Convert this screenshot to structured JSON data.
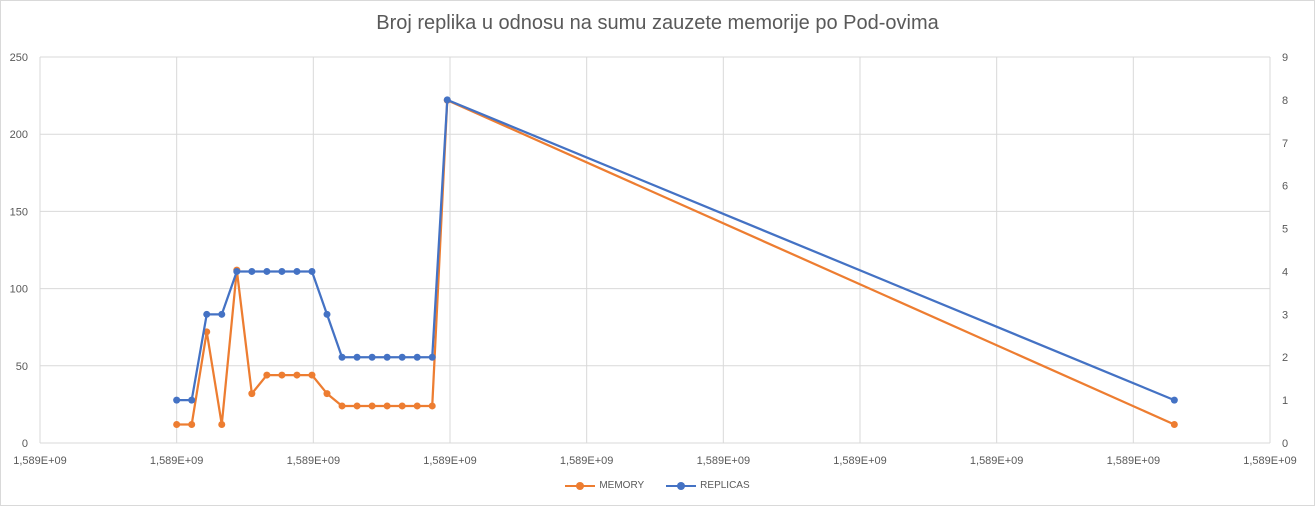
{
  "chart_data": {
    "type": "line",
    "title": "Broj replika u odnosu na sumu zauzete memorije po Pod-ovima",
    "xlabel": "",
    "ylabel": "",
    "x_tick_labels": [
      "1,589E+09",
      "1,589E+09",
      "1,589E+09",
      "1,589E+09",
      "1,589E+09",
      "1,589E+09",
      "1,589E+09",
      "1,589E+09",
      "1,589E+09",
      "1,589E+09"
    ],
    "y_left": {
      "ylim": [
        0,
        250
      ],
      "ticks": [
        0,
        50,
        100,
        150,
        200,
        250
      ]
    },
    "y_right": {
      "ylim": [
        0,
        9
      ],
      "ticks": [
        0,
        1,
        2,
        3,
        4,
        5,
        6,
        7,
        8,
        9
      ]
    },
    "x_positions": [
      1.0,
      1.11,
      1.22,
      1.33,
      1.44,
      1.55,
      1.66,
      1.77,
      1.88,
      1.99,
      2.1,
      2.21,
      2.32,
      2.43,
      2.54,
      2.65,
      2.76,
      2.87,
      2.98,
      8.3
    ],
    "grid": true,
    "legend_position": "bottom",
    "series": [
      {
        "name": "MEMORY",
        "axis": "left",
        "color": "#ED7D31",
        "values": [
          12,
          12,
          72,
          12,
          112,
          32,
          44,
          44,
          44,
          44,
          32,
          24,
          24,
          24,
          24,
          24,
          24,
          24,
          222,
          12
        ]
      },
      {
        "name": "REPLICAS",
        "axis": "right",
        "color": "#4472C4",
        "values": [
          1,
          1,
          3,
          3,
          4,
          4,
          4,
          4,
          4,
          4,
          3,
          2,
          2,
          2,
          2,
          2,
          2,
          2,
          8,
          1
        ]
      }
    ]
  }
}
